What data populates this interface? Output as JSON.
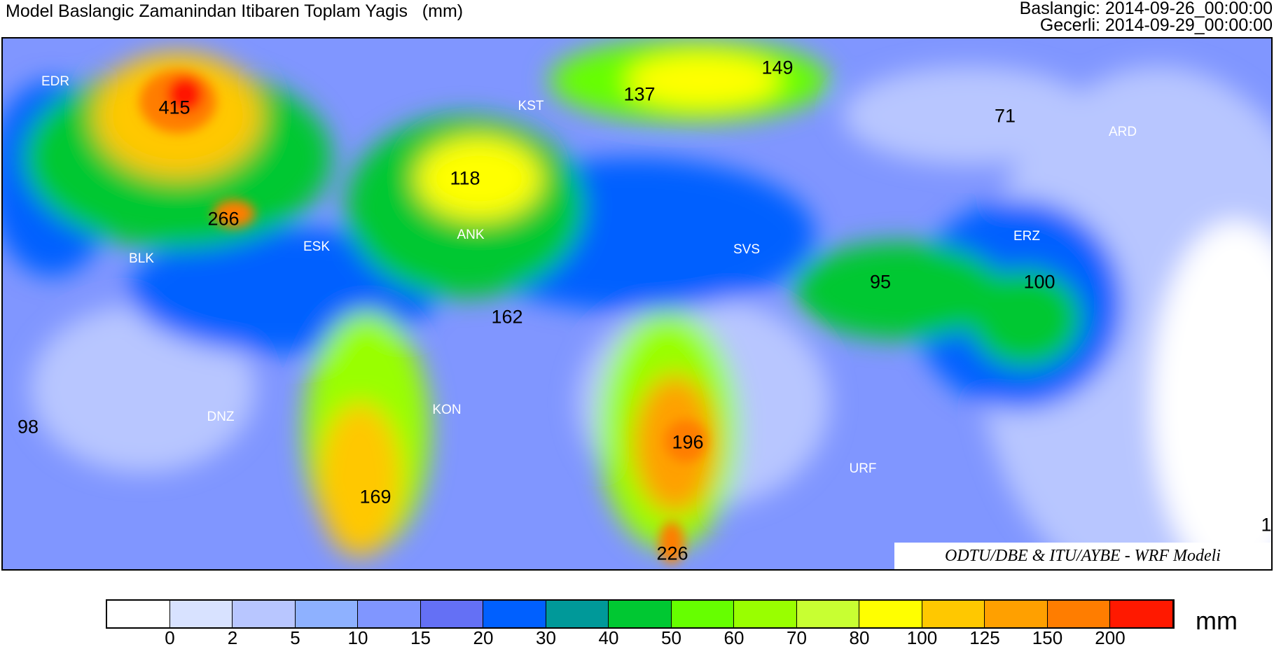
{
  "header": {
    "title": "Model Baslangic Zamanindan Itibaren Toplam Yagis   (mm)",
    "start": "Baslangic: 2014-09-26_00:00:00",
    "valid": "Gecerli: 2014-09-29_00:00:00"
  },
  "map": {
    "cities": [
      {
        "name": "EDR"
      },
      {
        "name": "KST"
      },
      {
        "name": "ARD"
      },
      {
        "name": "ANK"
      },
      {
        "name": "ESK"
      },
      {
        "name": "BLK"
      },
      {
        "name": "SVS"
      },
      {
        "name": "ERZ"
      },
      {
        "name": "KON"
      },
      {
        "name": "DNZ"
      },
      {
        "name": "URF"
      }
    ],
    "maxima": [
      "415",
      "137",
      "149",
      "71",
      "118",
      "266",
      "95",
      "100",
      "162",
      "98",
      "196",
      "169",
      "226",
      "1"
    ],
    "credit": "ODTU/DBE & ITU/AYBE - WRF Modeli"
  },
  "colorbar": {
    "unit": "mm",
    "levels": [
      "0",
      "2",
      "5",
      "10",
      "15",
      "20",
      "30",
      "40",
      "50",
      "60",
      "70",
      "80",
      "100",
      "125",
      "150",
      "200"
    ],
    "colors": [
      "#ffffff",
      "#d8e2ff",
      "#b8c6ff",
      "#8eb1ff",
      "#8096ff",
      "#6470f5",
      "#0060ff",
      "#009999",
      "#00c832",
      "#66ff00",
      "#99ff00",
      "#c8ff32",
      "#ffff00",
      "#ffc800",
      "#ffa000",
      "#ff7d00",
      "#ff1900"
    ]
  }
}
